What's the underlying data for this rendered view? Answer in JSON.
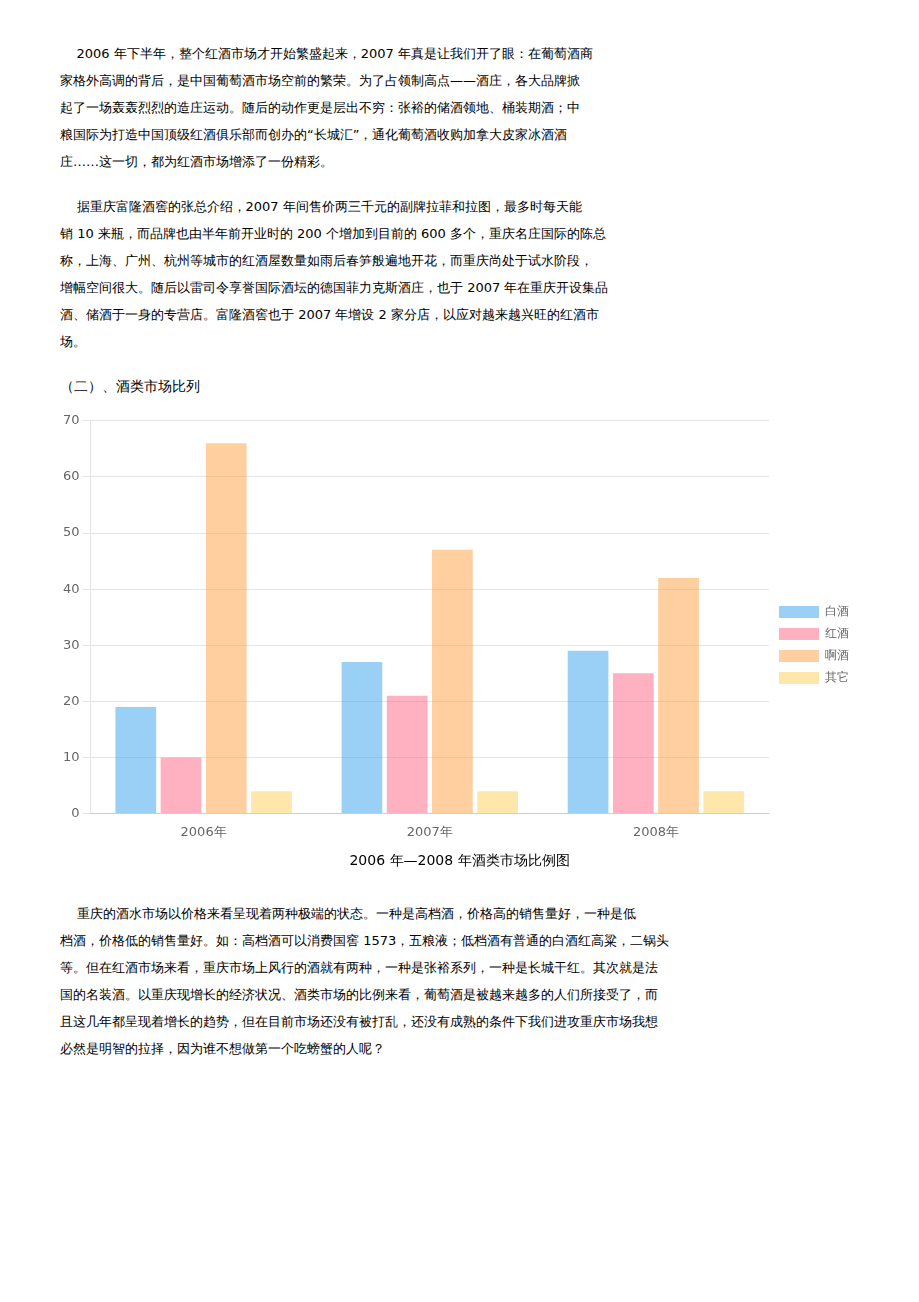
{
  "chart_data": {
    "type": "bar",
    "title": "2006 年—2008 年酒类市场比例图",
    "subtitle": "（二）、酒类市场比列",
    "categories": [
      "2006年",
      "2007年",
      "2008年"
    ],
    "series": [
      {
        "name": "白酒",
        "values": [
          19,
          27,
          29
        ]
      },
      {
        "name": "红酒",
        "values": [
          10,
          21,
          25
        ]
      },
      {
        "name": "啊酒",
        "values": [
          66,
          47,
          42
        ]
      },
      {
        "name": "其它",
        "values": [
          4,
          4,
          4
        ]
      }
    ],
    "ylim": [
      0,
      70
    ],
    "yticks": [
      0,
      10,
      20,
      30,
      40,
      50,
      60,
      70
    ],
    "grid": true,
    "legend": "right",
    "annotations": [
      [
        "    2006 年下半年，整个红酒市场才开始繁盛起来，2007 年真是让我们开了眼：在葡萄酒商",
        "家格外高调的背后，是中国葡萄酒市场空前的繁荣。为了占领制高点——酒庄，各大品牌掀",
        "起了一场轰轰烈烈的造庄运动。随后的动作更是层出不穷：张裕的储酒领地、桶装期酒；中",
        "粮国际为打造中国顶级红酒俱乐部而创办的“长城汇”，通化葡萄酒收购加拿大皮家冰酒酒",
        "庄……这一切，都为红酒市场增添了一份精彩。"
      ],
      [
        "    据重庆富隆酒窖的张总介绍，2007 年间售价两三千元的副牌拉菲和拉图，最多时每天能",
        "销 10 来瓶，而品牌也由半年前开业时的 200 个增加到目前的 600 多个，重庆名庄国际的陈总",
        "称，上海、广州、杭州等城市的红酒屋数量如雨后春笋般遍地开花，而重庆尚处于试水阶段，",
        "增幅空间很大。随后以雷司令享誉国际酒坛的德国菲力克斯酒庄，也于 2007 年在重庆开设集品",
        "酒、储酒于一身的专营店。富隆酒窖也于 2007 年增设 2 家分店，以应对越来越兴旺的红酒市",
        "场。"
      ],
      [
        "    重庆的酒水市场以价格来看呈现着两种极端的状态。一种是高档酒，价格高的销售量好，一种是低",
        "档酒，价格低的销售量好。如：高档酒可以消费国窖 1573，五粮液；低档酒有普通的白酒红高粱，二锅头",
        "等。但在红酒市场来看，重庆市场上风行的酒就有两种，一种是张裕系列，一种是长城干红。其次就是法",
        "国的名装酒。以重庆现增长的经济状况、酒类市场的比例来看，葡萄酒是被越来越多的人们所接受了，而",
        "且这几年都呈现着增长的趋势，但在目前市场还没有被打乱，还没有成熟的条件下我们进攻重庆市场我想",
        "必然是明智的拉择，因为谁不想做第一个吃螃蟹的人呢？"
      ]
    ]
  }
}
